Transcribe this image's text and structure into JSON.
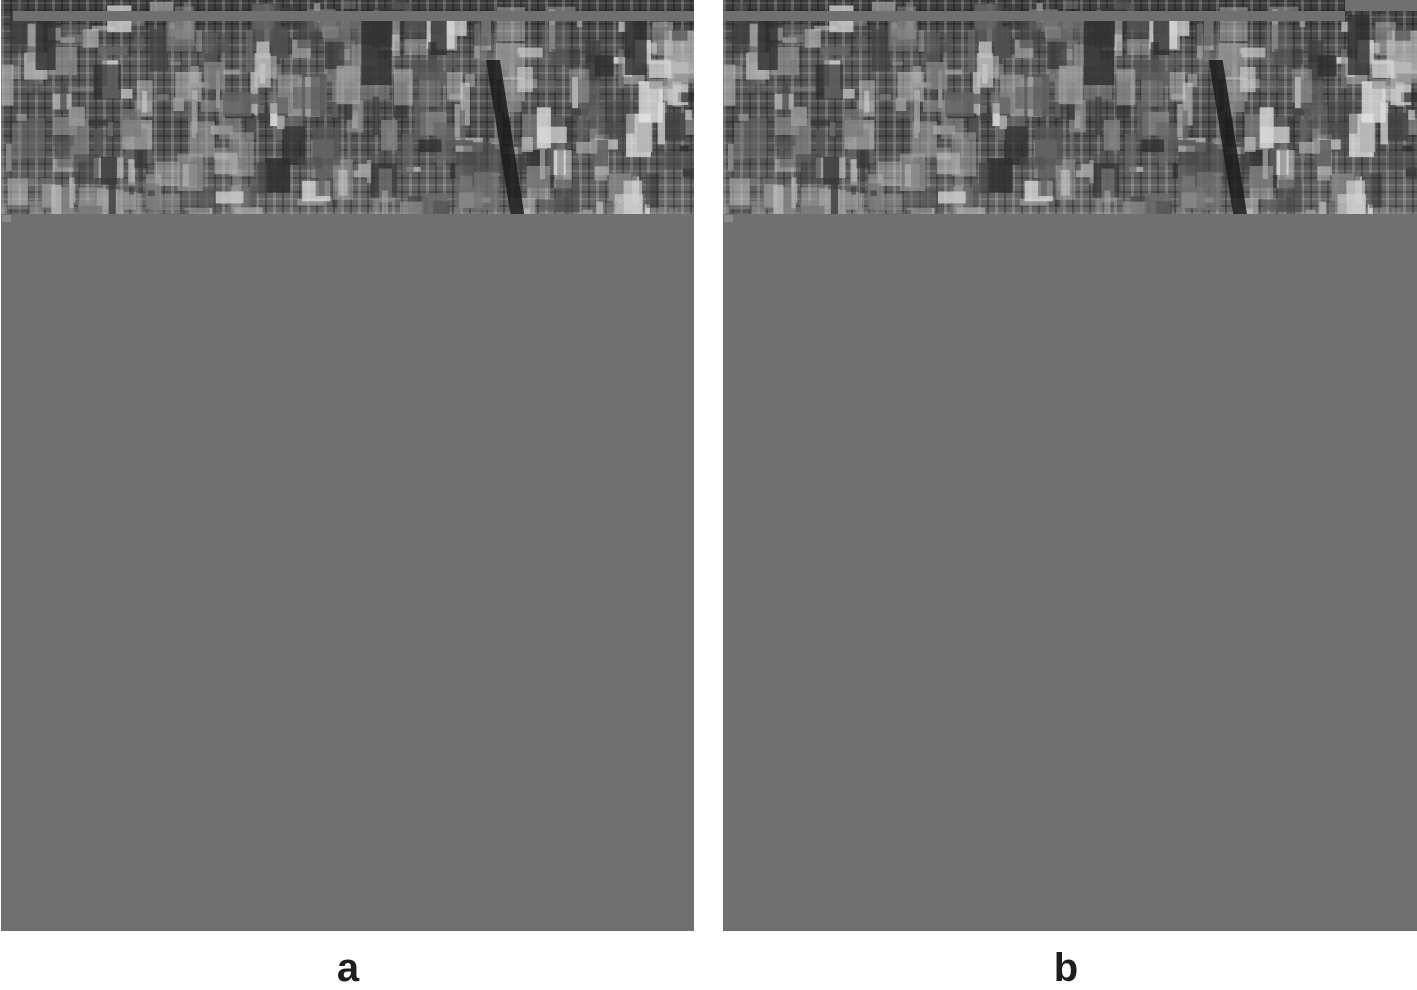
{
  "panels": [
    {
      "id": "a",
      "label": "a"
    },
    {
      "id": "b",
      "label": "b"
    }
  ],
  "colors": {
    "background": "#ffffff",
    "fill_grey": "#707070",
    "label": "#1e1e1e"
  }
}
